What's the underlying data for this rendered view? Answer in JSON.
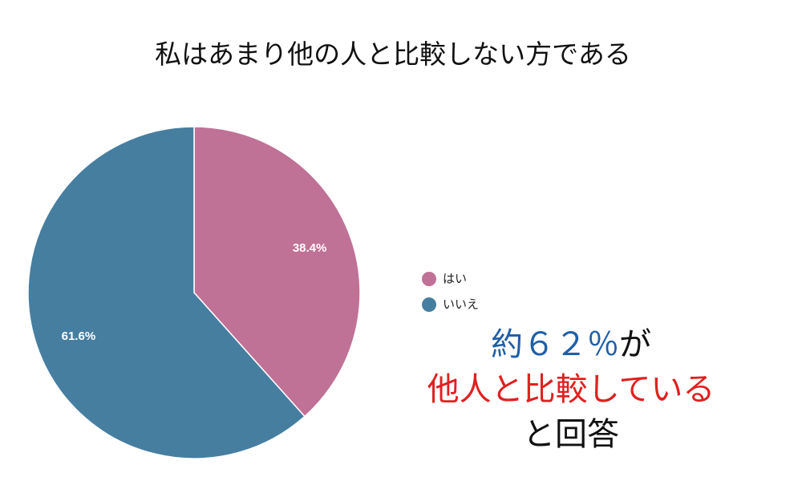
{
  "chart_data": {
    "type": "pie",
    "title": "私はあまり他の人と比較しない方である",
    "categories": [
      "はい",
      "いいえ"
    ],
    "values": [
      38.4,
      61.6
    ],
    "value_labels": [
      "38.4%",
      "61.6%"
    ],
    "colors": [
      "#c07196",
      "#467ea0"
    ],
    "annotations": [
      {
        "parts": [
          {
            "text": "約６２％",
            "color": "#1f5fa8"
          },
          {
            "text": "が",
            "color": "#111111"
          }
        ]
      },
      {
        "parts": [
          {
            "text": "他人と比較している",
            "color": "#e02020"
          }
        ]
      },
      {
        "parts": [
          {
            "text": "と回答",
            "color": "#111111"
          }
        ]
      }
    ]
  }
}
